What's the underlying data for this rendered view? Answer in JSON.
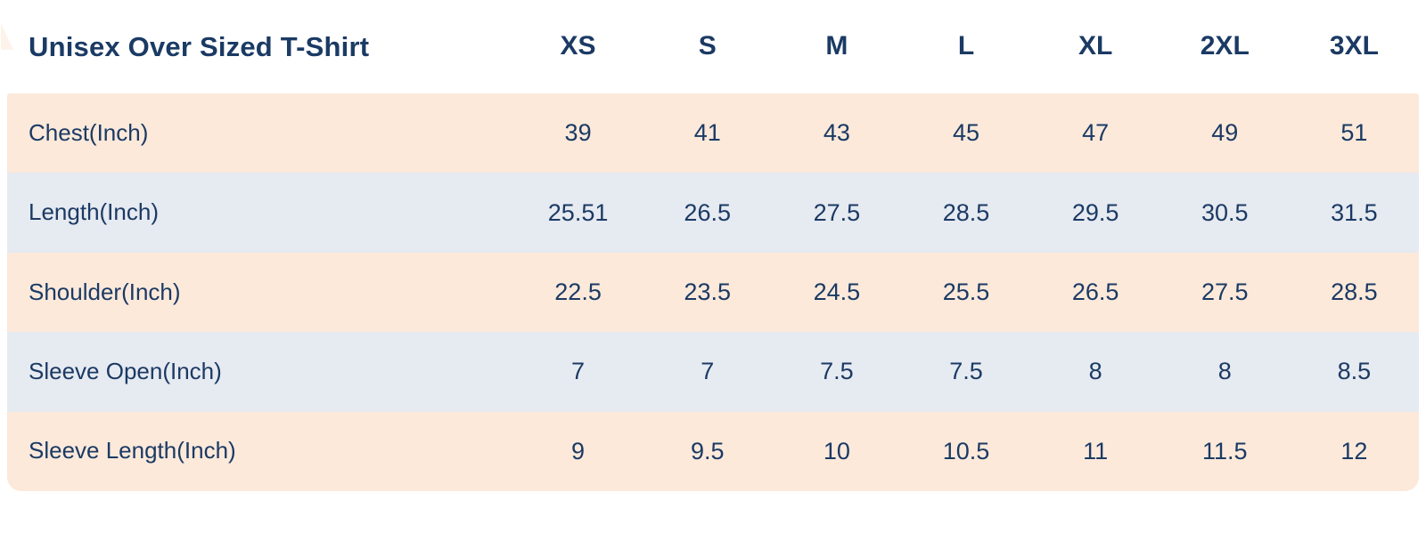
{
  "chart_data": {
    "type": "table",
    "title": "Unisex Over Sized T-Shirt",
    "columns": [
      "XS",
      "S",
      "M",
      "L",
      "XL",
      "2XL",
      "3XL"
    ],
    "rows": [
      {
        "label": "Chest(Inch)",
        "values": [
          "39",
          "41",
          "43",
          "45",
          "47",
          "49",
          "51"
        ]
      },
      {
        "label": "Length(Inch)",
        "values": [
          "25.51",
          "26.5",
          "27.5",
          "28.5",
          "29.5",
          "30.5",
          "31.5"
        ]
      },
      {
        "label": "Shoulder(Inch)",
        "values": [
          "22.5",
          "23.5",
          "24.5",
          "25.5",
          "26.5",
          "27.5",
          "28.5"
        ]
      },
      {
        "label": "Sleeve Open(Inch)",
        "values": [
          "7",
          "7",
          "7.5",
          "7.5",
          "8",
          "8",
          "8.5"
        ]
      },
      {
        "label": "Sleeve Length(Inch)",
        "values": [
          "9",
          "9.5",
          "10",
          "10.5",
          "11",
          "11.5",
          "12"
        ]
      }
    ],
    "layout_hints": {
      "legend": "none",
      "grid": "off",
      "row_striping": "alternating starting with peach",
      "header_position": "top row, white background",
      "corner_style": "rounded bottom corners on striped body"
    }
  },
  "colors": {
    "text_navy": "#1b3a64",
    "row_peach": "#fce9da",
    "row_blue": "#e6eaf1",
    "header_background": "#ffffff"
  }
}
